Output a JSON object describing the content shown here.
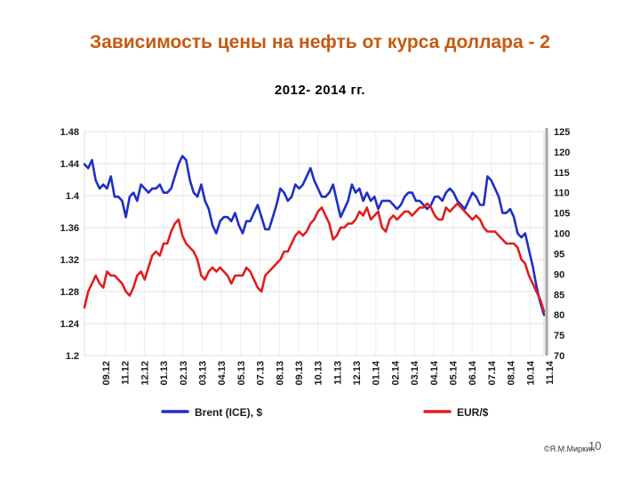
{
  "slide": {
    "title": "Зависимость цены на нефть от курса доллара - 2",
    "subtitle": "2012- 2014 гг.",
    "copyright": "©Я.М.Миркин",
    "number": "10"
  },
  "colors": {
    "title": "#c55a11",
    "brent": "#1f2fc8",
    "eur": "#e31b1b",
    "axis_text": "#1a1a1a"
  },
  "chart_data": {
    "type": "line",
    "x_tick_labels": [
      "09.12",
      "11.12",
      "12.12",
      "01.13",
      "02.13",
      "03.13",
      "04.13",
      "05.13",
      "07.13",
      "08.13",
      "09.13",
      "10.13",
      "11.13",
      "12.13",
      "01.14",
      "02.14",
      "03.14",
      "04.14",
      "05.14",
      "06.14",
      "07.14",
      "08.14",
      "10.14",
      "11.14"
    ],
    "left_axis": {
      "ylim": [
        1.2,
        1.48
      ],
      "ticks": [
        "1.2",
        "1.24",
        "1.28",
        "1.32",
        "1.36",
        "1.4",
        "1.44",
        "1.48"
      ]
    },
    "right_axis": {
      "ylim": [
        70,
        125
      ],
      "ticks": [
        "70",
        "75",
        "80",
        "85",
        "90",
        "95",
        "100",
        "105",
        "110",
        "115",
        "120",
        "125"
      ]
    },
    "grid": true,
    "legend_position": "bottom",
    "x_range": [
      0,
      122
    ],
    "series": [
      {
        "name": "Brent (ICE), $",
        "axis": "right",
        "color": "#1f2fc8",
        "x": [
          0,
          1,
          2,
          3,
          4,
          5,
          6,
          7,
          8,
          9,
          10,
          11,
          12,
          13,
          14,
          15,
          16,
          17,
          18,
          19,
          20,
          21,
          22,
          23,
          24,
          25,
          26,
          27,
          28,
          29,
          30,
          31,
          32,
          33,
          34,
          35,
          36,
          37,
          38,
          39,
          40,
          41,
          42,
          43,
          44,
          45,
          46,
          47,
          48,
          49,
          50,
          51,
          52,
          53,
          54,
          55,
          56,
          57,
          58,
          59,
          60,
          61,
          62,
          63,
          64,
          65,
          66,
          67,
          68,
          69,
          70,
          71,
          72,
          73,
          74,
          75,
          76,
          77,
          78,
          79,
          80,
          81,
          82,
          83,
          84,
          85,
          86,
          87,
          88,
          89,
          90,
          91,
          92,
          93,
          94,
          95,
          96,
          97,
          98,
          99,
          100,
          101,
          102,
          103,
          104,
          105,
          106,
          107,
          108,
          109,
          110,
          111,
          112,
          113,
          114,
          115,
          116,
          117,
          118,
          119,
          120,
          121,
          122
        ],
        "y": [
          117,
          116,
          118,
          113,
          111,
          112,
          111,
          114,
          109,
          109,
          108,
          104,
          109,
          110,
          108,
          112,
          111,
          110,
          111,
          111,
          112,
          110,
          110,
          111,
          114,
          117,
          119,
          118,
          113,
          110,
          109,
          112,
          108,
          106,
          102,
          100,
          103,
          104,
          104,
          103,
          105,
          102,
          100,
          103,
          103,
          105,
          107,
          104,
          101,
          101,
          104,
          107,
          111,
          110,
          108,
          109,
          112,
          111,
          112,
          114,
          116,
          113,
          111,
          109,
          109,
          110,
          112,
          108,
          104,
          106,
          108,
          112,
          110,
          111,
          108,
          110,
          108,
          109,
          106,
          108,
          108,
          108,
          107,
          106,
          107,
          109,
          110,
          110,
          108,
          108,
          107,
          106,
          107,
          109,
          109,
          108,
          110,
          111,
          110,
          108,
          107,
          106,
          108,
          110,
          109,
          107,
          107,
          114,
          113,
          111,
          109,
          105,
          105,
          106,
          104,
          100,
          99,
          100,
          96,
          92,
          87,
          83,
          80
        ]
      },
      {
        "name": "EUR/$",
        "axis": "left",
        "color": "#e31b1b",
        "x": [
          0,
          1,
          2,
          3,
          4,
          5,
          6,
          7,
          8,
          9,
          10,
          11,
          12,
          13,
          14,
          15,
          16,
          17,
          18,
          19,
          20,
          21,
          22,
          23,
          24,
          25,
          26,
          27,
          28,
          29,
          30,
          31,
          32,
          33,
          34,
          35,
          36,
          37,
          38,
          39,
          40,
          41,
          42,
          43,
          44,
          45,
          46,
          47,
          48,
          49,
          50,
          51,
          52,
          53,
          54,
          55,
          56,
          57,
          58,
          59,
          60,
          61,
          62,
          63,
          64,
          65,
          66,
          67,
          68,
          69,
          70,
          71,
          72,
          73,
          74,
          75,
          76,
          77,
          78,
          79,
          80,
          81,
          82,
          83,
          84,
          85,
          86,
          87,
          88,
          89,
          90,
          91,
          92,
          93,
          94,
          95,
          96,
          97,
          98,
          99,
          100,
          101,
          102,
          103,
          104,
          105,
          106,
          107,
          108,
          109,
          110,
          111,
          112,
          113,
          114,
          115,
          116,
          117,
          118,
          119,
          120,
          121,
          122
        ],
        "y": [
          1.26,
          1.28,
          1.29,
          1.3,
          1.29,
          1.285,
          1.305,
          1.3,
          1.3,
          1.295,
          1.29,
          1.28,
          1.275,
          1.285,
          1.3,
          1.305,
          1.295,
          1.31,
          1.325,
          1.33,
          1.325,
          1.34,
          1.34,
          1.355,
          1.365,
          1.37,
          1.35,
          1.34,
          1.335,
          1.33,
          1.32,
          1.3,
          1.295,
          1.305,
          1.31,
          1.305,
          1.31,
          1.305,
          1.3,
          1.29,
          1.3,
          1.3,
          1.3,
          1.31,
          1.305,
          1.295,
          1.285,
          1.28,
          1.3,
          1.305,
          1.31,
          1.315,
          1.32,
          1.33,
          1.33,
          1.34,
          1.35,
          1.355,
          1.35,
          1.355,
          1.365,
          1.37,
          1.38,
          1.385,
          1.375,
          1.365,
          1.345,
          1.35,
          1.36,
          1.36,
          1.365,
          1.365,
          1.37,
          1.38,
          1.375,
          1.385,
          1.37,
          1.375,
          1.38,
          1.36,
          1.355,
          1.37,
          1.375,
          1.37,
          1.375,
          1.38,
          1.38,
          1.375,
          1.38,
          1.385,
          1.385,
          1.39,
          1.385,
          1.375,
          1.37,
          1.37,
          1.385,
          1.38,
          1.385,
          1.39,
          1.385,
          1.38,
          1.375,
          1.37,
          1.375,
          1.37,
          1.36,
          1.355,
          1.355,
          1.355,
          1.35,
          1.345,
          1.34,
          1.34,
          1.34,
          1.335,
          1.32,
          1.315,
          1.3,
          1.29,
          1.28,
          1.27,
          1.255
        ]
      }
    ]
  }
}
